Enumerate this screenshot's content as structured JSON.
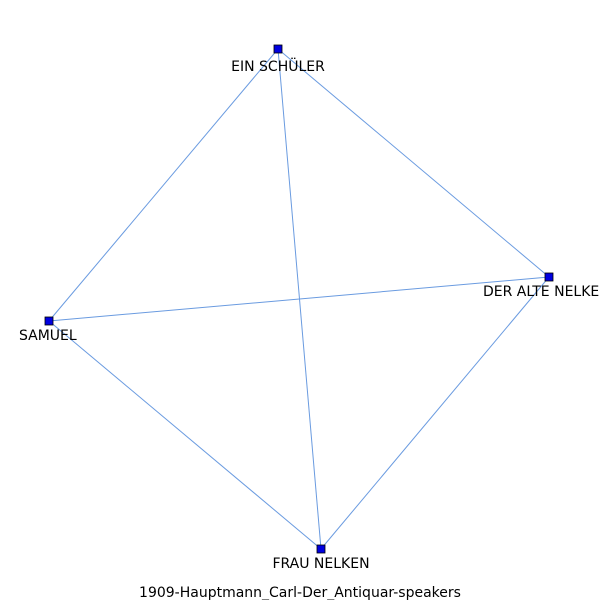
{
  "graph": {
    "caption": "1909-Hauptmann_Carl-Der_Antiquar-speakers",
    "nodes": [
      {
        "id": "schueler",
        "label": "EIN SCHÜLER"
      },
      {
        "id": "alte_nelken",
        "label": "DER ALTE NELKEN"
      },
      {
        "id": "samuel",
        "label": "SAMUEL"
      },
      {
        "id": "frau_nelken",
        "label": "FRAU NELKEN"
      }
    ],
    "edges": [
      {
        "source": "schueler",
        "target": "samuel"
      },
      {
        "source": "schueler",
        "target": "alte_nelken"
      },
      {
        "source": "schueler",
        "target": "frau_nelken"
      },
      {
        "source": "samuel",
        "target": "alte_nelken"
      },
      {
        "source": "samuel",
        "target": "frau_nelken"
      },
      {
        "source": "alte_nelken",
        "target": "frau_nelken"
      }
    ],
    "colors": {
      "node_fill": "#0000e0",
      "edge": "#6a9be0"
    }
  }
}
